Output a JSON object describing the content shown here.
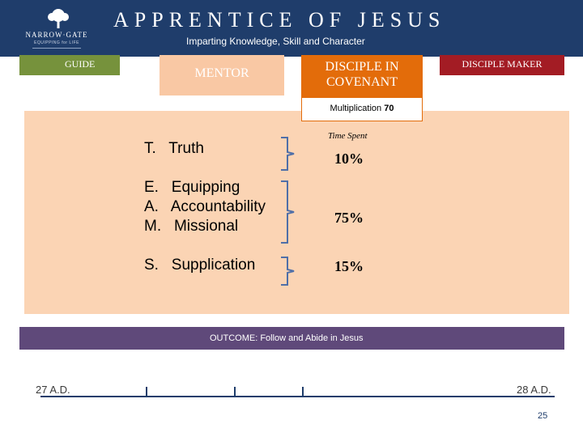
{
  "header": {
    "title": "APPRENTICE OF JESUS",
    "subtitle": "Imparting Knowledge, Skill and Character",
    "logo_name": "NARROW·GATE",
    "logo_tagline": "EQUIPPING for LIFE",
    "logo_icon": "tree-icon"
  },
  "stages": {
    "guide": "GUIDE",
    "mentor": "MENTOR",
    "disciple_in_covenant_line1": "DISCIPLE IN",
    "disciple_in_covenant_line2": "COVENANT",
    "disciple_maker": "DISCIPLE MAKER"
  },
  "multiplication": {
    "label": "Multiplication",
    "value": "70"
  },
  "panel": {
    "time_spent_label": "Time Spent",
    "groups": [
      {
        "lines": "T.   Truth",
        "percent": "10%"
      },
      {
        "lines": "E.   Equipping\nA.   Accountability\nM.   Missional",
        "percent": "75%"
      },
      {
        "lines": "S.   Supplication",
        "percent": "15%"
      }
    ]
  },
  "outcome": "OUTCOME: Follow and Abide in Jesus",
  "timeline": {
    "start": "27 A.D.",
    "end": "28 A.D."
  },
  "page_number": "25",
  "colors": {
    "header": "#1f3d6b",
    "guide": "#76923c",
    "mentor": "#f9c8a4",
    "covenant": "#e36c0a",
    "maker": "#a31c24",
    "panel": "#fbd4b4",
    "outcome": "#5f497a",
    "brace": "#4f6fa8"
  }
}
